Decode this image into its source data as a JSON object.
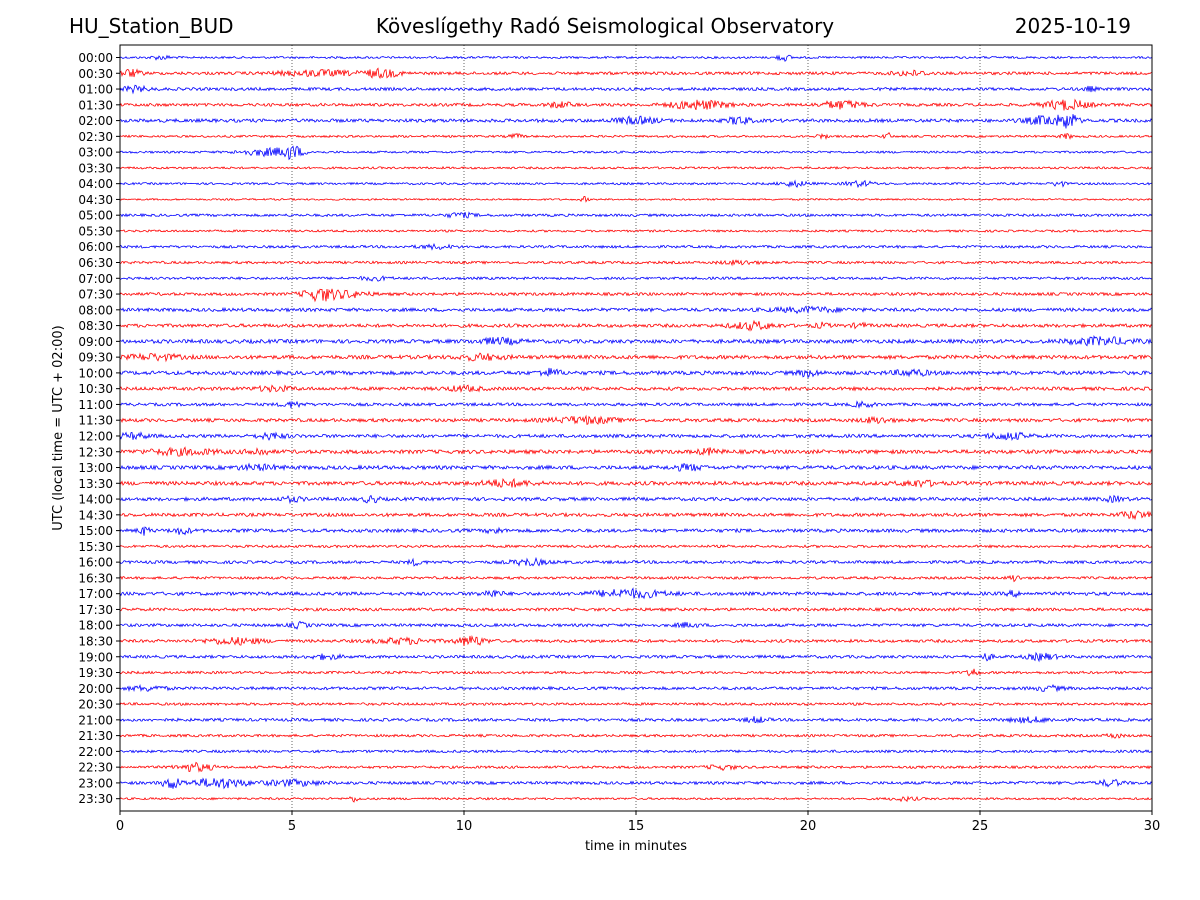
{
  "header": {
    "station": "HU_Station_BUD",
    "observatory": "Köveslígethy Radó Seismological Observatory",
    "date": "2025-10-19"
  },
  "colors": {
    "trace_a": "#0000ff",
    "trace_b": "#ff0000",
    "axis": "#000000",
    "grid": "#000000"
  },
  "chart_data": {
    "type": "line",
    "title": "Köveslígethy Radó Seismological Observatory",
    "xlabel": "time in minutes",
    "ylabel": "UTC (local time = UTC + 02:00)",
    "xlim": [
      0,
      30
    ],
    "xticks": [
      0,
      5,
      10,
      15,
      20,
      25,
      30
    ],
    "grid": "vertical dotted at major x ticks",
    "trace_colors_alternate": [
      "blue",
      "red"
    ],
    "rows": [
      {
        "label": "00:00",
        "amp": 0.25,
        "events": [
          {
            "t": 19.3,
            "a": 0.7,
            "d": 0.4
          },
          {
            "t": 1.2,
            "a": 0.4,
            "d": 0.6
          }
        ]
      },
      {
        "label": "00:30",
        "amp": 0.35,
        "events": [
          {
            "t": 0.3,
            "a": 0.8,
            "d": 0.6
          },
          {
            "t": 5.7,
            "a": 0.6,
            "d": 2.2
          },
          {
            "t": 7.6,
            "a": 0.9,
            "d": 1.0
          },
          {
            "t": 23.0,
            "a": 0.5,
            "d": 1.0
          }
        ]
      },
      {
        "label": "01:00",
        "amp": 0.35,
        "events": [
          {
            "t": 0.4,
            "a": 0.6,
            "d": 0.8
          },
          {
            "t": 28.2,
            "a": 0.5,
            "d": 0.3
          }
        ]
      },
      {
        "label": "01:30",
        "amp": 0.35,
        "events": [
          {
            "t": 12.8,
            "a": 0.6,
            "d": 0.7
          },
          {
            "t": 16.8,
            "a": 1.0,
            "d": 1.6
          },
          {
            "t": 21.0,
            "a": 0.9,
            "d": 1.2
          },
          {
            "t": 27.5,
            "a": 1.1,
            "d": 1.2
          }
        ]
      },
      {
        "label": "02:00",
        "amp": 0.4,
        "events": [
          {
            "t": 15.0,
            "a": 0.7,
            "d": 1.2
          },
          {
            "t": 18.0,
            "a": 0.9,
            "d": 0.6
          },
          {
            "t": 27.0,
            "a": 1.1,
            "d": 1.2
          },
          {
            "t": 27.6,
            "a": 1.6,
            "d": 0.4
          }
        ]
      },
      {
        "label": "02:30",
        "amp": 0.25,
        "events": [
          {
            "t": 11.5,
            "a": 0.5,
            "d": 0.4
          },
          {
            "t": 20.4,
            "a": 0.6,
            "d": 0.3
          },
          {
            "t": 22.3,
            "a": 0.9,
            "d": 0.2
          },
          {
            "t": 27.5,
            "a": 0.6,
            "d": 0.3
          }
        ]
      },
      {
        "label": "03:00",
        "amp": 0.25,
        "events": [
          {
            "t": 4.3,
            "a": 0.8,
            "d": 1.6
          },
          {
            "t": 5.0,
            "a": 1.3,
            "d": 0.6
          }
        ]
      },
      {
        "label": "03:30",
        "amp": 0.25,
        "events": []
      },
      {
        "label": "04:00",
        "amp": 0.25,
        "events": [
          {
            "t": 19.6,
            "a": 0.6,
            "d": 0.8
          },
          {
            "t": 21.5,
            "a": 0.6,
            "d": 0.8
          },
          {
            "t": 27.3,
            "a": 0.8,
            "d": 0.3
          }
        ]
      },
      {
        "label": "04:30",
        "amp": 0.2,
        "events": [
          {
            "t": 13.5,
            "a": 0.6,
            "d": 0.2
          }
        ]
      },
      {
        "label": "05:00",
        "amp": 0.3,
        "events": [
          {
            "t": 9.9,
            "a": 0.5,
            "d": 0.8
          }
        ]
      },
      {
        "label": "05:30",
        "amp": 0.25,
        "events": []
      },
      {
        "label": "06:00",
        "amp": 0.3,
        "events": [
          {
            "t": 9.2,
            "a": 0.4,
            "d": 1.0
          }
        ]
      },
      {
        "label": "06:30",
        "amp": 0.3,
        "events": [
          {
            "t": 18.0,
            "a": 0.4,
            "d": 1.0
          }
        ]
      },
      {
        "label": "07:00",
        "amp": 0.3,
        "events": [
          {
            "t": 7.4,
            "a": 0.4,
            "d": 0.8
          }
        ]
      },
      {
        "label": "07:30",
        "amp": 0.35,
        "events": [
          {
            "t": 5.8,
            "a": 1.4,
            "d": 0.9
          },
          {
            "t": 6.6,
            "a": 0.7,
            "d": 1.2
          }
        ]
      },
      {
        "label": "08:00",
        "amp": 0.4,
        "events": [
          {
            "t": 20.0,
            "a": 0.5,
            "d": 2.0
          }
        ]
      },
      {
        "label": "08:30",
        "amp": 0.4,
        "events": [
          {
            "t": 18.4,
            "a": 0.8,
            "d": 1.2
          },
          {
            "t": 20.4,
            "a": 0.5,
            "d": 0.4
          },
          {
            "t": 21.5,
            "a": 0.5,
            "d": 0.4
          }
        ]
      },
      {
        "label": "09:00",
        "amp": 0.45,
        "events": [
          {
            "t": 11.0,
            "a": 0.6,
            "d": 1.2
          },
          {
            "t": 28.5,
            "a": 0.8,
            "d": 1.8
          }
        ]
      },
      {
        "label": "09:30",
        "amp": 0.45,
        "events": [
          {
            "t": 1.0,
            "a": 0.6,
            "d": 1.4
          },
          {
            "t": 10.5,
            "a": 0.6,
            "d": 1.2
          }
        ]
      },
      {
        "label": "10:00",
        "amp": 0.45,
        "events": [
          {
            "t": 12.5,
            "a": 0.8,
            "d": 0.6
          },
          {
            "t": 20.0,
            "a": 0.7,
            "d": 0.6
          },
          {
            "t": 23.0,
            "a": 0.6,
            "d": 1.0
          }
        ]
      },
      {
        "label": "10:30",
        "amp": 0.4,
        "events": [
          {
            "t": 4.5,
            "a": 0.5,
            "d": 1.0
          },
          {
            "t": 10.0,
            "a": 0.5,
            "d": 1.0
          }
        ]
      },
      {
        "label": "11:00",
        "amp": 0.35,
        "events": [
          {
            "t": 5.0,
            "a": 0.6,
            "d": 0.6
          },
          {
            "t": 21.6,
            "a": 0.5,
            "d": 0.6
          }
        ]
      },
      {
        "label": "11:30",
        "amp": 0.4,
        "events": [
          {
            "t": 13.5,
            "a": 0.7,
            "d": 1.8
          },
          {
            "t": 22.0,
            "a": 0.6,
            "d": 0.8
          }
        ]
      },
      {
        "label": "12:00",
        "amp": 0.4,
        "events": [
          {
            "t": 0.4,
            "a": 0.6,
            "d": 0.8
          },
          {
            "t": 4.4,
            "a": 0.6,
            "d": 0.8
          },
          {
            "t": 25.8,
            "a": 0.7,
            "d": 1.2
          }
        ]
      },
      {
        "label": "12:30",
        "amp": 0.45,
        "events": [
          {
            "t": 1.8,
            "a": 0.6,
            "d": 2.0
          },
          {
            "t": 4.0,
            "a": 0.7,
            "d": 0.6
          },
          {
            "t": 17.1,
            "a": 0.6,
            "d": 0.6
          }
        ]
      },
      {
        "label": "13:00",
        "amp": 0.45,
        "events": [
          {
            "t": 4.0,
            "a": 0.5,
            "d": 1.2
          },
          {
            "t": 16.5,
            "a": 0.6,
            "d": 0.8
          }
        ]
      },
      {
        "label": "13:30",
        "amp": 0.45,
        "events": [
          {
            "t": 11.2,
            "a": 0.7,
            "d": 1.4
          },
          {
            "t": 23.2,
            "a": 0.6,
            "d": 1.0
          }
        ]
      },
      {
        "label": "14:00",
        "amp": 0.4,
        "events": [
          {
            "t": 7.3,
            "a": 0.8,
            "d": 0.4
          },
          {
            "t": 5.0,
            "a": 0.5,
            "d": 0.6
          },
          {
            "t": 28.9,
            "a": 0.5,
            "d": 0.6
          }
        ]
      },
      {
        "label": "14:30",
        "amp": 0.4,
        "events": [
          {
            "t": 29.5,
            "a": 0.8,
            "d": 0.8
          }
        ]
      },
      {
        "label": "15:00",
        "amp": 0.4,
        "events": [
          {
            "t": 0.7,
            "a": 0.9,
            "d": 0.3
          },
          {
            "t": 1.8,
            "a": 0.7,
            "d": 0.5
          },
          {
            "t": 10.9,
            "a": 0.6,
            "d": 0.4
          }
        ]
      },
      {
        "label": "15:30",
        "amp": 0.3,
        "events": []
      },
      {
        "label": "16:00",
        "amp": 0.35,
        "events": [
          {
            "t": 8.6,
            "a": 0.6,
            "d": 0.4
          },
          {
            "t": 11.9,
            "a": 0.7,
            "d": 1.0
          }
        ]
      },
      {
        "label": "16:30",
        "amp": 0.3,
        "events": [
          {
            "t": 26.0,
            "a": 0.8,
            "d": 0.3
          }
        ]
      },
      {
        "label": "17:00",
        "amp": 0.4,
        "events": [
          {
            "t": 10.8,
            "a": 0.7,
            "d": 0.6
          },
          {
            "t": 14.8,
            "a": 0.9,
            "d": 2.0
          },
          {
            "t": 26.0,
            "a": 0.5,
            "d": 0.4
          }
        ]
      },
      {
        "label": "17:30",
        "amp": 0.35,
        "events": []
      },
      {
        "label": "18:00",
        "amp": 0.35,
        "events": [
          {
            "t": 5.2,
            "a": 0.6,
            "d": 0.5
          },
          {
            "t": 16.5,
            "a": 0.5,
            "d": 0.6
          }
        ]
      },
      {
        "label": "18:30",
        "amp": 0.35,
        "events": [
          {
            "t": 3.3,
            "a": 0.7,
            "d": 1.6
          },
          {
            "t": 8.2,
            "a": 0.6,
            "d": 1.6
          },
          {
            "t": 10.2,
            "a": 1.1,
            "d": 0.8
          }
        ]
      },
      {
        "label": "19:00",
        "amp": 0.35,
        "events": [
          {
            "t": 6.0,
            "a": 0.5,
            "d": 0.8
          },
          {
            "t": 25.2,
            "a": 0.8,
            "d": 0.3
          },
          {
            "t": 26.8,
            "a": 0.7,
            "d": 0.8
          }
        ]
      },
      {
        "label": "19:30",
        "amp": 0.3,
        "events": [
          {
            "t": 24.8,
            "a": 1.0,
            "d": 0.3
          }
        ]
      },
      {
        "label": "20:00",
        "amp": 0.35,
        "events": [
          {
            "t": 0.8,
            "a": 0.5,
            "d": 1.0
          },
          {
            "t": 27.0,
            "a": 0.5,
            "d": 0.8
          }
        ]
      },
      {
        "label": "20:30",
        "amp": 0.3,
        "events": []
      },
      {
        "label": "21:00",
        "amp": 0.35,
        "events": [
          {
            "t": 18.5,
            "a": 0.6,
            "d": 0.6
          },
          {
            "t": 26.5,
            "a": 0.5,
            "d": 1.2
          }
        ]
      },
      {
        "label": "21:30",
        "amp": 0.3,
        "events": [
          {
            "t": 28.9,
            "a": 0.5,
            "d": 0.4
          }
        ]
      },
      {
        "label": "22:00",
        "amp": 0.3,
        "events": []
      },
      {
        "label": "22:30",
        "amp": 0.3,
        "events": [
          {
            "t": 2.2,
            "a": 0.9,
            "d": 1.0
          },
          {
            "t": 17.5,
            "a": 0.5,
            "d": 0.8
          }
        ]
      },
      {
        "label": "23:00",
        "amp": 0.35,
        "events": [
          {
            "t": 1.5,
            "a": 1.3,
            "d": 0.5
          },
          {
            "t": 2.9,
            "a": 1.1,
            "d": 1.5
          },
          {
            "t": 5.0,
            "a": 0.6,
            "d": 1.6
          },
          {
            "t": 28.8,
            "a": 0.7,
            "d": 0.6
          }
        ]
      },
      {
        "label": "23:30",
        "amp": 0.25,
        "events": [
          {
            "t": 6.8,
            "a": 0.6,
            "d": 0.3
          },
          {
            "t": 22.8,
            "a": 0.4,
            "d": 0.8
          }
        ]
      }
    ]
  }
}
